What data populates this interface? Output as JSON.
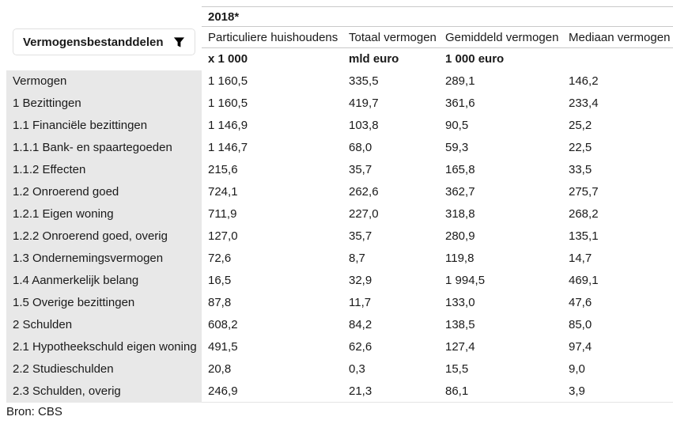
{
  "controls": {
    "filter_button": {
      "label": "Vermogensbestanddelen",
      "icon": "filter-funnel-icon"
    }
  },
  "table": {
    "period_header": "2018*",
    "columns": [
      {
        "label": "Particuliere huishoudens",
        "unit": "x 1 000"
      },
      {
        "label": "Totaal vermogen",
        "unit": "mld euro"
      },
      {
        "label": "Gemiddeld vermogen",
        "unit": "1 000 euro"
      },
      {
        "label": "Mediaan vermogen",
        "unit": ""
      }
    ],
    "rows": [
      {
        "label": "Vermogen",
        "values": [
          "1 160,5",
          "335,5",
          "289,1",
          "146,2"
        ]
      },
      {
        "label": "1 Bezittingen",
        "values": [
          "1 160,5",
          "419,7",
          "361,6",
          "233,4"
        ]
      },
      {
        "label": "1.1 Financiële bezittingen",
        "values": [
          "1 146,9",
          "103,8",
          "90,5",
          "25,2"
        ]
      },
      {
        "label": "1.1.1 Bank- en spaartegoeden",
        "values": [
          "1 146,7",
          "68,0",
          "59,3",
          "22,5"
        ]
      },
      {
        "label": "1.1.2 Effecten",
        "values": [
          "215,6",
          "35,7",
          "165,8",
          "33,5"
        ]
      },
      {
        "label": "1.2 Onroerend goed",
        "values": [
          "724,1",
          "262,6",
          "362,7",
          "275,7"
        ]
      },
      {
        "label": "1.2.1 Eigen woning",
        "values": [
          "711,9",
          "227,0",
          "318,8",
          "268,2"
        ]
      },
      {
        "label": "1.2.2 Onroerend goed, overig",
        "values": [
          "127,0",
          "35,7",
          "280,9",
          "135,1"
        ]
      },
      {
        "label": "1.3 Ondernemingsvermogen",
        "values": [
          "72,6",
          "8,7",
          "119,8",
          "14,7"
        ]
      },
      {
        "label": "1.4 Aanmerkelijk belang",
        "values": [
          "16,5",
          "32,9",
          "1 994,5",
          "469,1"
        ]
      },
      {
        "label": "1.5 Overige bezittingen",
        "values": [
          "87,8",
          "11,7",
          "133,0",
          "47,6"
        ]
      },
      {
        "label": "2 Schulden",
        "values": [
          "608,2",
          "84,2",
          "138,5",
          "85,0"
        ]
      },
      {
        "label": "2.1 Hypotheekschuld eigen woning",
        "values": [
          "491,5",
          "62,6",
          "127,4",
          "97,4"
        ]
      },
      {
        "label": "2.2 Studieschulden",
        "values": [
          "20,8",
          "0,3",
          "15,5",
          "9,0"
        ]
      },
      {
        "label": "2.3 Schulden, overig",
        "values": [
          "246,9",
          "21,3",
          "86,1",
          "3,9"
        ]
      }
    ]
  },
  "footer": {
    "source": "Bron: CBS"
  }
}
